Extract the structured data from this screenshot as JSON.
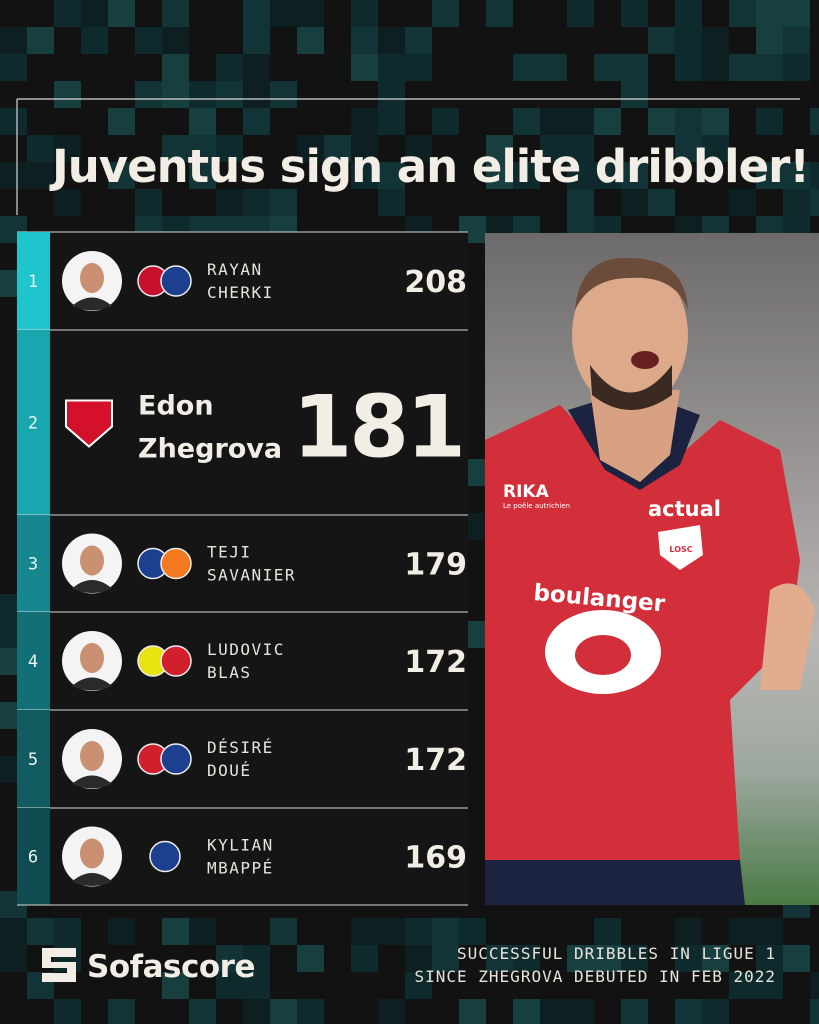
{
  "title": "Juventus sign an elite dribbler!",
  "rows": [
    {
      "rank": 1,
      "first": "RAYAN",
      "last": "CHERKI",
      "value": 208
    },
    {
      "rank": 2,
      "first": "Edon",
      "last": "Zhegrova",
      "value": 181
    },
    {
      "rank": 3,
      "first": "TEJI",
      "last": "SAVANIER",
      "value": 179
    },
    {
      "rank": 4,
      "first": "LUDOVIC",
      "last": "BLAS",
      "value": 172
    },
    {
      "rank": 5,
      "first": "DÉSIRÉ",
      "last": "DOUÉ",
      "value": 172
    },
    {
      "rank": 6,
      "first": "KYLIAN",
      "last": "MBAPPÉ",
      "value": 169
    }
  ],
  "photo": {
    "sponsor": "RIKA",
    "sponsor_tagline": "Le poêle autrichien",
    "kit_sponsor": "actual",
    "main_sponsor": "boulanger",
    "badge": "LOSC"
  },
  "footer": {
    "brand": "Sofascore",
    "caption_lines": [
      "SUCCESSFUL DRIBBLES IN LIGUE 1",
      "SINCE ZHEGROVA DEBUTED IN FEB 2022"
    ]
  }
}
